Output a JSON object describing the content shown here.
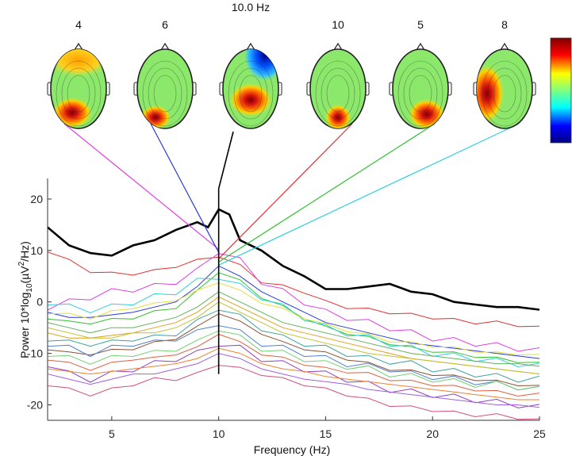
{
  "chart_data": {
    "type": "line",
    "title": "",
    "xlabel": "Frequency (Hz)",
    "ylabel_parts": {
      "pre": "Power 10*log",
      "sub1": "10",
      "mid": "(µV",
      "sup": "2",
      "post": "/Hz)"
    },
    "xlim": [
      2,
      25
    ],
    "ylim": [
      -23,
      24
    ],
    "xticks": [
      5,
      10,
      15,
      20,
      25
    ],
    "yticks": [
      -20,
      -10,
      0,
      10,
      20
    ],
    "grid": false,
    "marker_frequency_hz": 10,
    "scalp_maps": [
      {
        "label": "4",
        "freq_hz": 10,
        "pattern": "frontal-occipital-left",
        "line_color": "#e040e0"
      },
      {
        "label": "6",
        "freq_hz": 10,
        "pattern": "occipital-left",
        "line_color": "#2a3ad8"
      },
      {
        "label": "10.0 Hz",
        "freq_hz": 10,
        "pattern": "occipital-center-dark-right",
        "line_color": "#000000"
      },
      {
        "label": "10",
        "freq_hz": 10,
        "pattern": "occipital-center",
        "line_color": "#e03030"
      },
      {
        "label": "5",
        "freq_hz": 10,
        "pattern": "occipital-right",
        "line_color": "#30c030"
      },
      {
        "label": "8",
        "freq_hz": 10,
        "pattern": "temporal-left",
        "line_color": "#30d0e0"
      }
    ],
    "colorbar": {
      "colors": [
        "#00007f",
        "#0000ff",
        "#00ffff",
        "#7fff7f",
        "#ffff00",
        "#ff0000",
        "#7f0000"
      ]
    },
    "series": [
      {
        "color": "#000000",
        "width": 2.6,
        "x": [
          2,
          3,
          4,
          5,
          6,
          7,
          8,
          9,
          9.5,
          10,
          10.5,
          11,
          12,
          13,
          14,
          15,
          16,
          17,
          18,
          19,
          20,
          21,
          22,
          23,
          24,
          25
        ],
        "y": [
          14.5,
          11,
          9.5,
          9,
          11,
          12,
          14,
          15.5,
          14.5,
          18,
          17,
          12,
          10,
          7,
          5,
          2.5,
          2.5,
          3,
          3.5,
          2,
          1.5,
          0,
          -0.5,
          -1,
          -1,
          -1.5
        ]
      },
      {
        "color": "#e03030",
        "x": [
          2,
          3,
          4,
          5,
          6,
          7,
          8,
          9,
          10,
          11,
          12,
          13,
          14,
          15,
          16,
          17,
          18,
          19,
          20,
          21,
          22,
          23,
          24,
          25
        ],
        "y": [
          10,
          8,
          6,
          5.5,
          5.5,
          6,
          7,
          8,
          9,
          7,
          4,
          3,
          2,
          0,
          -1,
          -1.5,
          -2,
          -2.5,
          -3,
          -3.5,
          -4,
          -4,
          -4.5,
          -5
        ]
      },
      {
        "color": "#e040e0",
        "x": [
          2,
          3,
          4,
          5,
          6,
          7,
          8,
          9,
          10,
          11,
          12,
          13,
          14,
          15,
          16,
          17,
          18,
          19,
          20,
          21,
          22,
          23,
          24,
          25
        ],
        "y": [
          -1,
          0,
          1,
          2,
          2.5,
          3,
          4,
          6,
          10,
          8,
          4,
          2,
          0,
          -2,
          -3,
          -4,
          -5,
          -6,
          -7,
          -7.5,
          -8,
          -8.5,
          -9,
          -9.5
        ]
      },
      {
        "color": "#2a3ad8",
        "x": [
          2,
          3,
          4,
          5,
          6,
          7,
          8,
          9,
          10,
          11,
          12,
          13,
          14,
          15,
          16,
          17,
          18,
          19,
          20,
          21,
          22,
          23,
          24,
          25
        ],
        "y": [
          -2,
          -3,
          -3,
          -2.5,
          -2,
          -1,
          0,
          3,
          7,
          5,
          2,
          0,
          -2,
          -4,
          -5,
          -6,
          -7,
          -8,
          -8.5,
          -9,
          -9.5,
          -10,
          -10.5,
          -11
        ]
      },
      {
        "color": "#30c030",
        "x": [
          2,
          3,
          4,
          5,
          6,
          7,
          8,
          9,
          10,
          11,
          12,
          13,
          14,
          15,
          16,
          17,
          18,
          19,
          20,
          21,
          22,
          23,
          24,
          25
        ],
        "y": [
          -3,
          -4,
          -4,
          -3.5,
          -3,
          -2,
          -1,
          2,
          6,
          4,
          1,
          -1,
          -3,
          -5,
          -6,
          -7,
          -8,
          -9,
          -9.5,
          -10,
          -10.5,
          -11,
          -11.5,
          -12
        ]
      },
      {
        "color": "#30d0e0",
        "x": [
          2,
          3,
          4,
          5,
          6,
          7,
          8,
          9,
          10,
          11,
          12,
          13,
          14,
          15,
          16,
          17,
          18,
          19,
          20,
          21,
          22,
          23,
          24,
          25
        ],
        "y": [
          0,
          -1,
          -1.5,
          -1,
          0,
          1,
          2,
          4,
          5,
          3,
          1,
          -1,
          -3,
          -5,
          -6,
          -7,
          -8,
          -9,
          -10,
          -10.5,
          -11,
          -11.5,
          -12,
          -12.5
        ]
      },
      {
        "color": "#e0a020",
        "x": [
          2,
          3,
          4,
          5,
          6,
          7,
          8,
          9,
          10,
          11,
          12,
          13,
          14,
          15,
          16,
          17,
          18,
          19,
          20,
          21,
          22,
          23,
          24,
          25
        ],
        "y": [
          -6,
          -7,
          -7,
          -6.5,
          -6,
          -5,
          -4,
          -2,
          1,
          -1,
          -3,
          -5,
          -6,
          -7,
          -8,
          -9,
          -10,
          -11,
          -11.5,
          -12,
          -12.5,
          -13,
          -13.5,
          -14
        ]
      },
      {
        "color": "#8a5030",
        "x": [
          2,
          3,
          4,
          5,
          6,
          7,
          8,
          9,
          10,
          11,
          12,
          13,
          14,
          15,
          16,
          17,
          18,
          19,
          20,
          21,
          22,
          23,
          24,
          25
        ],
        "y": [
          -9,
          -10,
          -10,
          -9.5,
          -9,
          -8,
          -7,
          -5,
          -2,
          -4,
          -6,
          -8,
          -9,
          -10,
          -11,
          -12,
          -13,
          -13.5,
          -14,
          -14.5,
          -15,
          -15.5,
          -16,
          -16.5
        ]
      },
      {
        "color": "#9040c0",
        "x": [
          2,
          3,
          4,
          5,
          6,
          7,
          8,
          9,
          10,
          11,
          12,
          13,
          14,
          15,
          16,
          17,
          18,
          19,
          20,
          21,
          22,
          23,
          24,
          25
        ],
        "y": [
          -12,
          -14,
          -15,
          -14,
          -13,
          -12,
          -11,
          -10,
          -8,
          -9,
          -11,
          -12,
          -13,
          -14,
          -15,
          -16,
          -17,
          -17.5,
          -18,
          -18.5,
          -19,
          -19.5,
          -20,
          -20.5
        ]
      },
      {
        "color": "#60b060",
        "x": [
          2,
          3,
          4,
          5,
          6,
          7,
          8,
          9,
          10,
          11,
          12,
          13,
          14,
          15,
          16,
          17,
          18,
          19,
          20,
          21,
          22,
          23,
          24,
          25
        ],
        "y": [
          -4,
          -5,
          -6,
          -5,
          -5,
          -4,
          -3,
          -1,
          2,
          0,
          -2,
          -4,
          -5,
          -6,
          -7,
          -8,
          -9,
          -10,
          -10.5,
          -11,
          -11.5,
          -12,
          -12,
          -12.5
        ]
      },
      {
        "color": "#d05080",
        "x": [
          2,
          3,
          4,
          5,
          6,
          7,
          8,
          9,
          10,
          11,
          12,
          13,
          14,
          15,
          16,
          17,
          18,
          19,
          20,
          21,
          22,
          23,
          24,
          25
        ],
        "y": [
          -16,
          -17,
          -18,
          -17,
          -16,
          -15,
          -15,
          -14,
          -12,
          -13,
          -14,
          -15,
          -16,
          -17,
          -18,
          -19,
          -20,
          -20.5,
          -21,
          -21.5,
          -22,
          -22,
          -22.5,
          -23
        ]
      },
      {
        "color": "#5080d0",
        "x": [
          2,
          3,
          4,
          5,
          6,
          7,
          8,
          9,
          10,
          11,
          12,
          13,
          14,
          15,
          16,
          17,
          18,
          19,
          20,
          21,
          22,
          23,
          24,
          25
        ],
        "y": [
          -8,
          -9,
          -10,
          -9,
          -8,
          -8,
          -7,
          -6,
          -4,
          -6,
          -8,
          -9,
          -10,
          -11,
          -12,
          -12.5,
          -13,
          -14,
          -14.5,
          -15,
          -15.5,
          -16,
          -16.5,
          -17
        ]
      },
      {
        "color": "#c0c030",
        "x": [
          2,
          3,
          4,
          5,
          6,
          7,
          8,
          9,
          10,
          11,
          12,
          13,
          14,
          15,
          16,
          17,
          18,
          19,
          20,
          21,
          22,
          23,
          24,
          25
        ],
        "y": [
          -5,
          -6,
          -7,
          -7,
          -6,
          -6,
          -5,
          -3,
          0,
          -2,
          -4,
          -6,
          -7,
          -8,
          -9,
          -10,
          -10.5,
          -11,
          -11.5,
          -12,
          -12.5,
          -13,
          -13.5,
          -14
        ]
      },
      {
        "color": "#e06040",
        "x": [
          2,
          3,
          4,
          5,
          6,
          7,
          8,
          9,
          10,
          11,
          12,
          13,
          14,
          15,
          16,
          17,
          18,
          19,
          20,
          21,
          22,
          23,
          24,
          25
        ],
        "y": [
          -11,
          -12,
          -13,
          -12,
          -11,
          -11,
          -10,
          -9,
          -6,
          -8,
          -10,
          -11,
          -12,
          -13,
          -13.5,
          -14,
          -15,
          -15.5,
          -16,
          -16.5,
          -17,
          -17.5,
          -18,
          -18
        ]
      },
      {
        "color": "#40a0a0",
        "x": [
          2,
          3,
          4,
          5,
          6,
          7,
          8,
          9,
          10,
          11,
          12,
          13,
          14,
          15,
          16,
          17,
          18,
          19,
          20,
          21,
          22,
          23,
          24,
          25
        ],
        "y": [
          -7,
          -8,
          -8,
          -8,
          -7,
          -7,
          -6,
          -4,
          -1,
          -3,
          -5,
          -7,
          -8,
          -9,
          -10,
          -11,
          -11.5,
          -12,
          -13,
          -13.5,
          -14,
          -14.5,
          -15,
          -15
        ]
      },
      {
        "color": "#a060e0",
        "x": [
          2,
          3,
          4,
          5,
          6,
          7,
          8,
          9,
          10,
          11,
          12,
          13,
          14,
          15,
          16,
          17,
          18,
          19,
          20,
          21,
          22,
          23,
          24,
          25
        ],
        "y": [
          -14,
          -15,
          -16,
          -15,
          -14,
          -14,
          -13,
          -12,
          -10,
          -11,
          -13,
          -14,
          -15,
          -15.5,
          -16,
          -17,
          -17.5,
          -18,
          -18.5,
          -19,
          -19.5,
          -20,
          -20,
          -20.5
        ]
      },
      {
        "color": "#e0e040",
        "x": [
          2,
          3,
          4,
          5,
          6,
          7,
          8,
          9,
          10,
          11,
          12,
          13,
          14,
          15,
          16,
          17,
          18,
          19,
          20,
          21,
          22,
          23,
          24,
          25
        ],
        "y": [
          -2,
          -2.5,
          -3,
          -2,
          -1,
          -0.5,
          0.5,
          2,
          4,
          2,
          0,
          -1.5,
          -3,
          -4.5,
          -5.5,
          -6.5,
          -7.5,
          -8,
          -8.5,
          -9,
          -9.5,
          -10,
          -10,
          -10.5
        ]
      },
      {
        "color": "#70d070",
        "x": [
          2,
          3,
          4,
          5,
          6,
          7,
          8,
          9,
          10,
          11,
          12,
          13,
          14,
          15,
          16,
          17,
          18,
          19,
          20,
          21,
          22,
          23,
          24,
          25
        ],
        "y": [
          -10,
          -11,
          -11.5,
          -11,
          -10,
          -10,
          -9,
          -8,
          -5,
          -7,
          -9,
          -10,
          -11,
          -12,
          -12.5,
          -13,
          -14,
          -14.5,
          -15,
          -15.5,
          -16,
          -16,
          -16.5,
          -17
        ]
      },
      {
        "color": "#f08030",
        "x": [
          2,
          3,
          4,
          5,
          6,
          7,
          8,
          9,
          10,
          11,
          12,
          13,
          14,
          15,
          16,
          17,
          18,
          19,
          20,
          21,
          22,
          23,
          24,
          25
        ],
        "y": [
          -13,
          -13.5,
          -14,
          -13.5,
          -13,
          -12.5,
          -12,
          -11,
          -9,
          -10,
          -12,
          -13,
          -13.5,
          -14.5,
          -15,
          -15.5,
          -16,
          -16.5,
          -17,
          -17.5,
          -18,
          -18.5,
          -19,
          -19
        ]
      }
    ]
  }
}
